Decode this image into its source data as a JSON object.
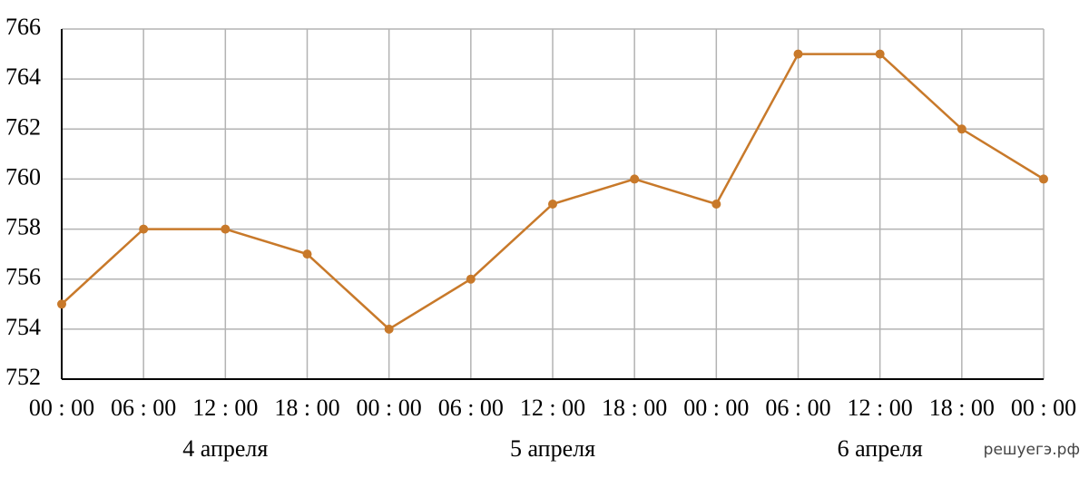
{
  "chart_data": {
    "type": "line",
    "categories": [
      "00 : 00",
      "06 : 00",
      "12 : 00",
      "18 : 00",
      "00 : 00",
      "06 : 00",
      "12 : 00",
      "18 : 00",
      "00 : 00",
      "06 : 00",
      "12 : 00",
      "18 : 00",
      "00 : 00"
    ],
    "values": [
      755,
      758,
      758,
      757,
      754,
      756,
      759,
      760,
      759,
      765,
      765,
      762,
      760
    ],
    "color": "#c8792a",
    "ylim": [
      752,
      766
    ],
    "yticks": [
      752,
      754,
      756,
      758,
      760,
      762,
      764,
      766
    ],
    "grid": true,
    "group_labels": [
      "4 апреля",
      "5 апреля",
      "6 апреля"
    ],
    "watermark": "решуегэ.рф"
  }
}
